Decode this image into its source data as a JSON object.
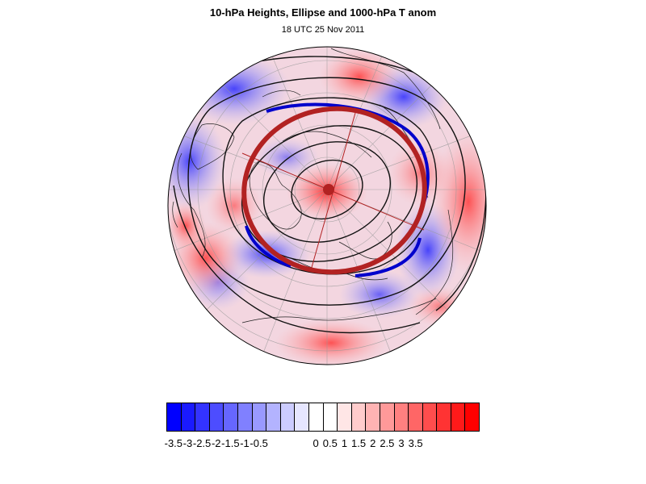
{
  "title": "10-hPa Heights, Ellipse and 1000-hPa T anom",
  "subtitle": "18 UTC 25 Nov 2011",
  "map": {
    "projection": "polar-stereographic-north",
    "fill_variable": "1000-hPa temperature anomaly",
    "contour_variable": "10-hPa heights",
    "ellipse_color": "#b22222",
    "ellipse_center_marker_color": "#b22222",
    "edge_contour_color": "#0000cc"
  },
  "colorbar": {
    "colors": [
      "#0000ff",
      "#1a1aff",
      "#3333ff",
      "#4d4dff",
      "#6666ff",
      "#8080ff",
      "#9999ff",
      "#b3b3ff",
      "#ccccff",
      "#e6e6ff",
      "#ffffff",
      "#ffffff",
      "#ffe6e6",
      "#ffcccc",
      "#ffb3b3",
      "#ff9999",
      "#ff8080",
      "#ff6666",
      "#ff4d4d",
      "#ff3333",
      "#ff1a1a",
      "#ff0000"
    ],
    "labels": [
      "-3.5",
      "-3",
      "-2.5",
      "-2",
      "-1.5",
      "-1",
      "-0.5",
      "0",
      "0.5",
      "1",
      "1.5",
      "2",
      "2.5",
      "3",
      "3.5"
    ]
  }
}
